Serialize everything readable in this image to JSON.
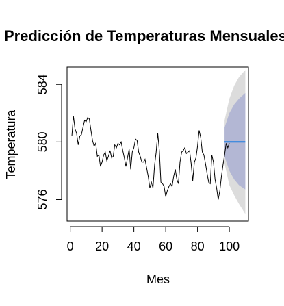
{
  "chart_data": {
    "type": "line",
    "title": "Predicción de Temperaturas Mensuales",
    "xlabel": "Mes",
    "ylabel": "Temperatura",
    "xlim": [
      -2,
      112
    ],
    "ylim": [
      574.5,
      585.2
    ],
    "x_ticks": [
      0,
      20,
      40,
      60,
      80,
      100
    ],
    "y_ticks": [
      576,
      580,
      584
    ],
    "grid": false,
    "legend": "none",
    "colors": {
      "history": "#000000",
      "forecast": "#1f7fe0",
      "band_95": "#dcdcdc",
      "band_80": "#b3b7d4"
    },
    "series": [
      {
        "values": [
          580.4,
          581.8,
          580.9,
          580.6,
          579.8,
          580.4,
          580.5,
          581.0,
          581.5,
          581.4,
          581.7,
          581.6,
          580.8,
          580.1,
          579.7,
          579.9,
          579.0,
          579.1,
          578.3,
          578.6,
          579.1,
          579.3,
          578.7,
          579.0,
          579.4,
          578.9,
          579.0,
          579.8,
          579.6,
          579.9,
          579.8,
          580.0,
          579.4,
          578.9,
          578.3,
          578.9,
          579.5,
          578.1,
          579.3,
          579.6,
          580.2,
          580.1,
          579.3,
          579.0,
          578.6,
          578.6,
          578.8,
          578.2,
          577.6,
          576.8,
          577.2,
          576.8,
          578.4,
          579.3,
          580.6,
          579.4,
          577.2,
          577.1,
          576.9,
          576.2,
          576.6,
          576.9,
          577.1,
          576.9,
          577.6,
          578.1,
          577.4,
          577.1,
          578.6,
          579.3,
          579.4,
          579.6,
          579.2,
          579.3,
          579.4,
          578.5,
          577.3,
          578.6,
          578.9,
          579.7,
          580.8,
          580.3,
          579.3,
          579.1,
          578.5,
          577.8,
          577.2,
          577.1,
          579.1,
          578.6,
          577.4,
          576.8,
          576.0,
          576.6,
          577.6,
          578.4,
          579.1,
          579.9,
          579.6,
          579.9
        ]
      },
      {
        "x": [
          97,
          110
        ],
        "values": [
          580.0,
          580.0
        ]
      }
    ],
    "bands": {
      "x": [
        97,
        100,
        103,
        106,
        110
      ],
      "lo95": [
        578.5,
        577.0,
        576.3,
        575.7,
        575.0
      ],
      "hi95": [
        581.5,
        583.0,
        583.9,
        584.5,
        585.0
      ],
      "lo80": [
        579.0,
        578.0,
        577.4,
        577.0,
        576.7
      ],
      "hi80": [
        581.0,
        582.0,
        582.6,
        583.0,
        583.4
      ]
    }
  }
}
